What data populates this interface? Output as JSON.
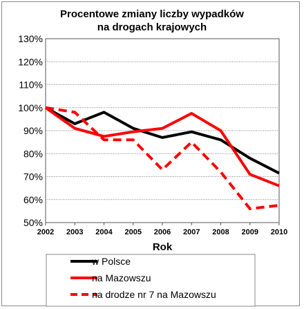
{
  "chart_data": {
    "type": "line",
    "title_lines": [
      "Procentowe zmiany liczby wypadków",
      "na drogach krajowych"
    ],
    "xlabel": "Rok",
    "ylabel": "",
    "x": [
      2002,
      2003,
      2004,
      2005,
      2006,
      2007,
      2008,
      2009,
      2010
    ],
    "ylim": [
      50,
      130
    ],
    "yticks": [
      50,
      60,
      70,
      80,
      90,
      100,
      110,
      120,
      130
    ],
    "ytick_labels": [
      "50%",
      "60%",
      "70%",
      "80%",
      "90%",
      "100%",
      "110%",
      "120%",
      "130%"
    ],
    "xtick_labels": [
      "2002",
      "2003",
      "2004",
      "2005",
      "2006",
      "2007",
      "2008",
      "2009",
      "2010"
    ],
    "grid": "horizontal dotted",
    "legend_position": "bottom",
    "series": [
      {
        "name": "w Polsce",
        "color": "#000000",
        "style": "solid",
        "values": [
          100,
          93,
          98,
          91,
          87,
          89.5,
          86,
          78,
          71.5
        ]
      },
      {
        "name": "na Mazowszu",
        "color": "#ff0000",
        "style": "solid",
        "values": [
          100,
          91,
          87.5,
          89.5,
          91,
          97.5,
          90,
          71,
          66
        ]
      },
      {
        "name": "na drodze nr 7 na Mazowszu",
        "color": "#ff0000",
        "style": "dashed",
        "values": [
          100,
          98,
          86,
          86,
          73,
          85,
          72,
          56,
          57.5
        ]
      }
    ]
  }
}
